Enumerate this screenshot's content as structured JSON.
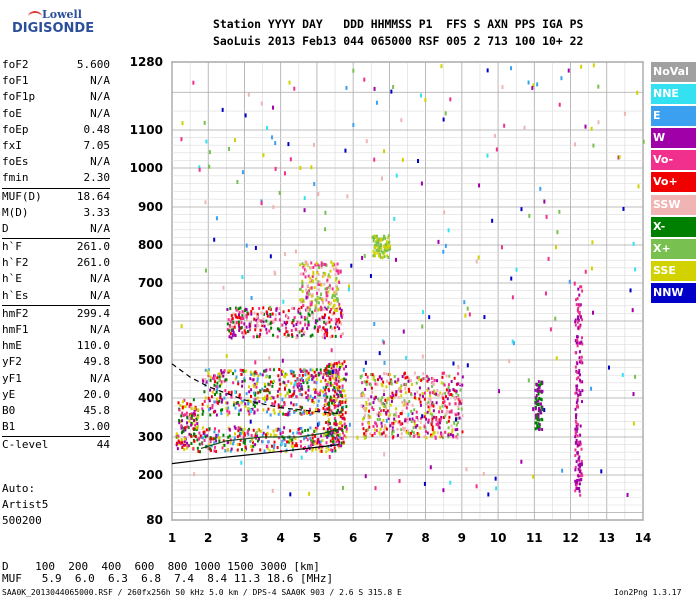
{
  "logo": {
    "brand_top": "Lowell",
    "brand_bottom": "DIGISONDE"
  },
  "header": {
    "line1": "Station YYYY DAY   DDD HHMMSS P1  FFS S AXN PPS IGA PS",
    "line2": "SaoLuis 2013 Feb13 044 065000 RSF 005 2 713 100 10+ 22"
  },
  "params": {
    "group1": [
      {
        "name": "foF2",
        "value": "5.600"
      },
      {
        "name": "foF1",
        "value": "N/A"
      },
      {
        "name": "foF1p",
        "value": "N/A"
      },
      {
        "name": "foE",
        "value": "N/A"
      },
      {
        "name": "foEp",
        "value": "0.48"
      },
      {
        "name": "fxI",
        "value": "7.05"
      },
      {
        "name": "foEs",
        "value": "N/A"
      },
      {
        "name": "fmin",
        "value": "2.30"
      }
    ],
    "group2": [
      {
        "name": "MUF(D)",
        "value": "18.64"
      },
      {
        "name": "M(D)",
        "value": "3.33"
      },
      {
        "name": "D",
        "value": "N/A"
      }
    ],
    "group3": [
      {
        "name": "h`F",
        "value": "261.0"
      },
      {
        "name": "h`F2",
        "value": "261.0"
      },
      {
        "name": "h`E",
        "value": "N/A"
      },
      {
        "name": "h`Es",
        "value": "N/A"
      }
    ],
    "group4": [
      {
        "name": "hmF2",
        "value": "299.4"
      },
      {
        "name": "hmF1",
        "value": "N/A"
      },
      {
        "name": "hmE",
        "value": "110.0"
      },
      {
        "name": "yF2",
        "value": "49.8"
      },
      {
        "name": "yF1",
        "value": "N/A"
      },
      {
        "name": "yE",
        "value": "20.0"
      },
      {
        "name": "B0",
        "value": "45.8"
      },
      {
        "name": "B1",
        "value": "3.00"
      }
    ],
    "group5": [
      {
        "name": "C-level",
        "value": "44"
      }
    ]
  },
  "auto": {
    "line1": "Auto:",
    "line2": "Artist5",
    "line3": "500200"
  },
  "legend": [
    {
      "label": "NoVal",
      "color": "#a0a0a0"
    },
    {
      "label": "NNE",
      "color": "#33e1f0"
    },
    {
      "label": "E",
      "color": "#3ca0f0"
    },
    {
      "label": "W",
      "color": "#a000a8"
    },
    {
      "label": "Vo-",
      "color": "#f0308c"
    },
    {
      "label": "Vo+",
      "color": "#f00000"
    },
    {
      "label": "SSW",
      "color": "#f0b4b4"
    },
    {
      "label": "X-",
      "color": "#008000"
    },
    {
      "label": "X+",
      "color": "#78c050"
    },
    {
      "label": "SSE",
      "color": "#d2d200"
    },
    {
      "label": "NNW",
      "color": "#0000c8"
    }
  ],
  "footer": {
    "d_line": "D    100  200  400  600  800 1000 1500 3000 [km]",
    "muf_line": "MUF   5.9  6.0  6.3  6.8  7.4  8.4 11.3 18.6 [MHz]",
    "file_line": "SAA0K_2013044065000.RSF / 260fx256h 50 kHz 5.0 km / DPS-4 SAA0K 903 / 2.6 S 315.8 E",
    "version": "Ion2Png 1.3.17"
  },
  "chart_data": {
    "type": "scatter",
    "x_ticks": [
      "1",
      "2",
      "3",
      "4",
      "5",
      "6",
      "7",
      "8",
      "9",
      "10",
      "11",
      "12",
      "13",
      "14"
    ],
    "y_ticks": [
      {
        "label": "80",
        "value": 80
      },
      {
        "label": "200",
        "value": 200
      },
      {
        "label": "300",
        "value": 300
      },
      {
        "label": "400",
        "value": 400
      },
      {
        "label": "500",
        "value": 500
      },
      {
        "label": "600",
        "value": 600
      },
      {
        "label": "700",
        "value": 700
      },
      {
        "label": "800",
        "value": 800
      },
      {
        "label": "900",
        "value": 900
      },
      {
        "label": "1000",
        "value": 1000
      },
      {
        "label": "1100",
        "value": 1100
      },
      {
        "label": "1280",
        "value": 1280
      }
    ],
    "xlim": [
      1,
      14
    ],
    "ylim": [
      80,
      1280
    ],
    "y_scale": "piecewise (ionogram height scale)",
    "grid": true,
    "x_unit": "MHz",
    "y_unit": "km",
    "clusters": [
      {
        "x": [
          1.1,
          1.7
        ],
        "y": [
          270,
          400
        ],
        "dir": [
          "Vo+",
          "Vo-",
          "X-",
          "SSE",
          "W"
        ]
      },
      {
        "x": [
          1.7,
          5.7
        ],
        "y": [
          265,
          330
        ],
        "dir": [
          "Vo+",
          "Vo-",
          "X-",
          "SSE",
          "W",
          "E"
        ]
      },
      {
        "x": [
          1.8,
          5.7
        ],
        "y": [
          360,
          480
        ],
        "dir": [
          "SSE",
          "X-",
          "Vo-",
          "Vo+",
          "E",
          "W"
        ]
      },
      {
        "x": [
          5.2,
          5.8
        ],
        "y": [
          280,
          500
        ],
        "dir": [
          "Vo+",
          "Vo-",
          "SSE",
          "W",
          "X-"
        ]
      },
      {
        "x": [
          6.2,
          9.0
        ],
        "y": [
          300,
          470
        ],
        "dir": [
          "Vo+",
          "Vo-",
          "SSE",
          "X+",
          "W",
          "SSW"
        ]
      },
      {
        "x": [
          2.5,
          5.7
        ],
        "y": [
          560,
          640
        ],
        "dir": [
          "Vo+",
          "Vo-",
          "X-",
          "W",
          "SSW"
        ]
      },
      {
        "x": [
          4.5,
          5.6
        ],
        "y": [
          630,
          760
        ],
        "dir": [
          "SSE",
          "X+",
          "SSW",
          "Vo-"
        ]
      },
      {
        "x": [
          6.5,
          7.0
        ],
        "y": [
          770,
          830
        ],
        "dir": [
          "SSE",
          "X+"
        ]
      },
      {
        "x": [
          12.1,
          12.3
        ],
        "y": [
          150,
          700
        ],
        "dir": [
          "W",
          "Vo-"
        ]
      },
      {
        "x": [
          11.0,
          11.2
        ],
        "y": [
          320,
          450
        ],
        "dir": [
          "W",
          "X-"
        ]
      },
      {
        "x": [
          1.2,
          14.0
        ],
        "y": [
          150,
          1280
        ],
        "dir": [
          "NNE",
          "E",
          "W",
          "NNW",
          "SSE",
          "Vo-",
          "X+",
          "SSW"
        ],
        "sparse": true
      }
    ],
    "lines": [
      {
        "name": "solid",
        "points": [
          [
            1,
            230
          ],
          [
            2,
            242
          ],
          [
            3,
            252
          ],
          [
            4,
            262
          ],
          [
            5,
            273
          ],
          [
            5.6,
            280
          ]
        ]
      },
      {
        "name": "dashed",
        "points": [
          [
            1,
            490
          ],
          [
            1.5,
            455
          ],
          [
            2,
            430
          ],
          [
            3,
            395
          ],
          [
            4,
            375
          ],
          [
            5,
            365
          ],
          [
            5.6,
            360
          ]
        ]
      },
      {
        "name": "profile",
        "points": [
          [
            1.8,
            270
          ],
          [
            2.5,
            290
          ],
          [
            3.5,
            300
          ],
          [
            4.5,
            300
          ],
          [
            5.2,
            310
          ],
          [
            5.6,
            320
          ]
        ]
      }
    ]
  }
}
